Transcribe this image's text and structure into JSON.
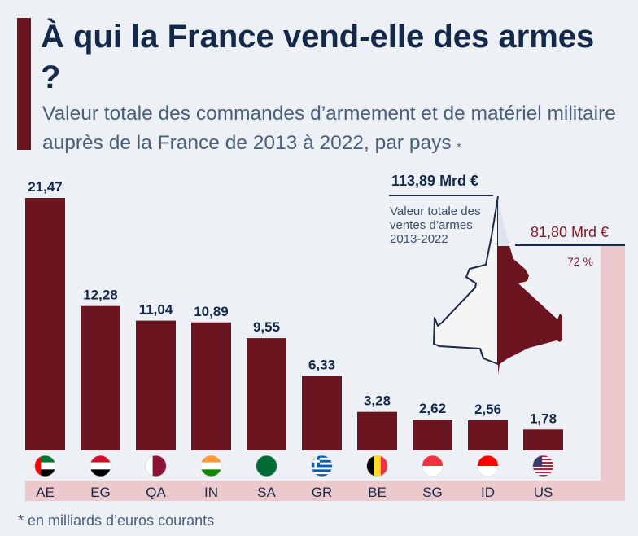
{
  "title": "À qui la France vend-elle des armes ?",
  "subtitle": "Valeur totale des commandes d’armement et de matériel militaire auprès de la France de 2013 à 2022, par pays",
  "subtitle_mark": "*",
  "footnote": "* en milliards d’euros courants",
  "summary": {
    "total_value": "113,89 Mrd €",
    "total_label": "Valeur totale des ventes d’armes 2013-2022",
    "top10_value": "81,80 Mrd €",
    "top10_share": "72 %"
  },
  "colors": {
    "bar": "#6b1520",
    "background": "#edf0f4",
    "band": "#ecc9cd",
    "text": "#13294b"
  },
  "chart_data": {
    "type": "bar",
    "categories": [
      "AE",
      "EG",
      "QA",
      "IN",
      "SA",
      "GR",
      "BE",
      "SG",
      "ID",
      "US"
    ],
    "values": [
      21.47,
      12.28,
      11.04,
      10.89,
      9.55,
      6.33,
      3.28,
      2.62,
      2.56,
      1.78
    ],
    "labels": [
      "21,47",
      "12,28",
      "11,04",
      "10,89",
      "9,55",
      "6,33",
      "3,28",
      "2,62",
      "2,56",
      "1,78"
    ],
    "flags": [
      {
        "type": "uae",
        "colors": [
          "#00732f",
          "#ffffff",
          "#000000",
          "#ff0000"
        ]
      },
      {
        "type": "h3",
        "colors": [
          "#ce1126",
          "#ffffff",
          "#000000"
        ]
      },
      {
        "type": "qatar",
        "colors": [
          "#ffffff",
          "#8a1538"
        ]
      },
      {
        "type": "h3",
        "colors": [
          "#ff9933",
          "#ffffff",
          "#138808"
        ]
      },
      {
        "type": "solid",
        "colors": [
          "#006c35"
        ]
      },
      {
        "type": "greece",
        "colors": [
          "#0d5eaf",
          "#ffffff"
        ]
      },
      {
        "type": "v3",
        "colors": [
          "#000000",
          "#fdda24",
          "#ef3340"
        ]
      },
      {
        "type": "h2",
        "colors": [
          "#ef3340",
          "#ffffff"
        ]
      },
      {
        "type": "h2",
        "colors": [
          "#ff0000",
          "#ffffff"
        ]
      },
      {
        "type": "usa",
        "colors": [
          "#b22234",
          "#ffffff",
          "#3c3b6e"
        ]
      }
    ],
    "ylim": [
      0,
      22
    ]
  }
}
